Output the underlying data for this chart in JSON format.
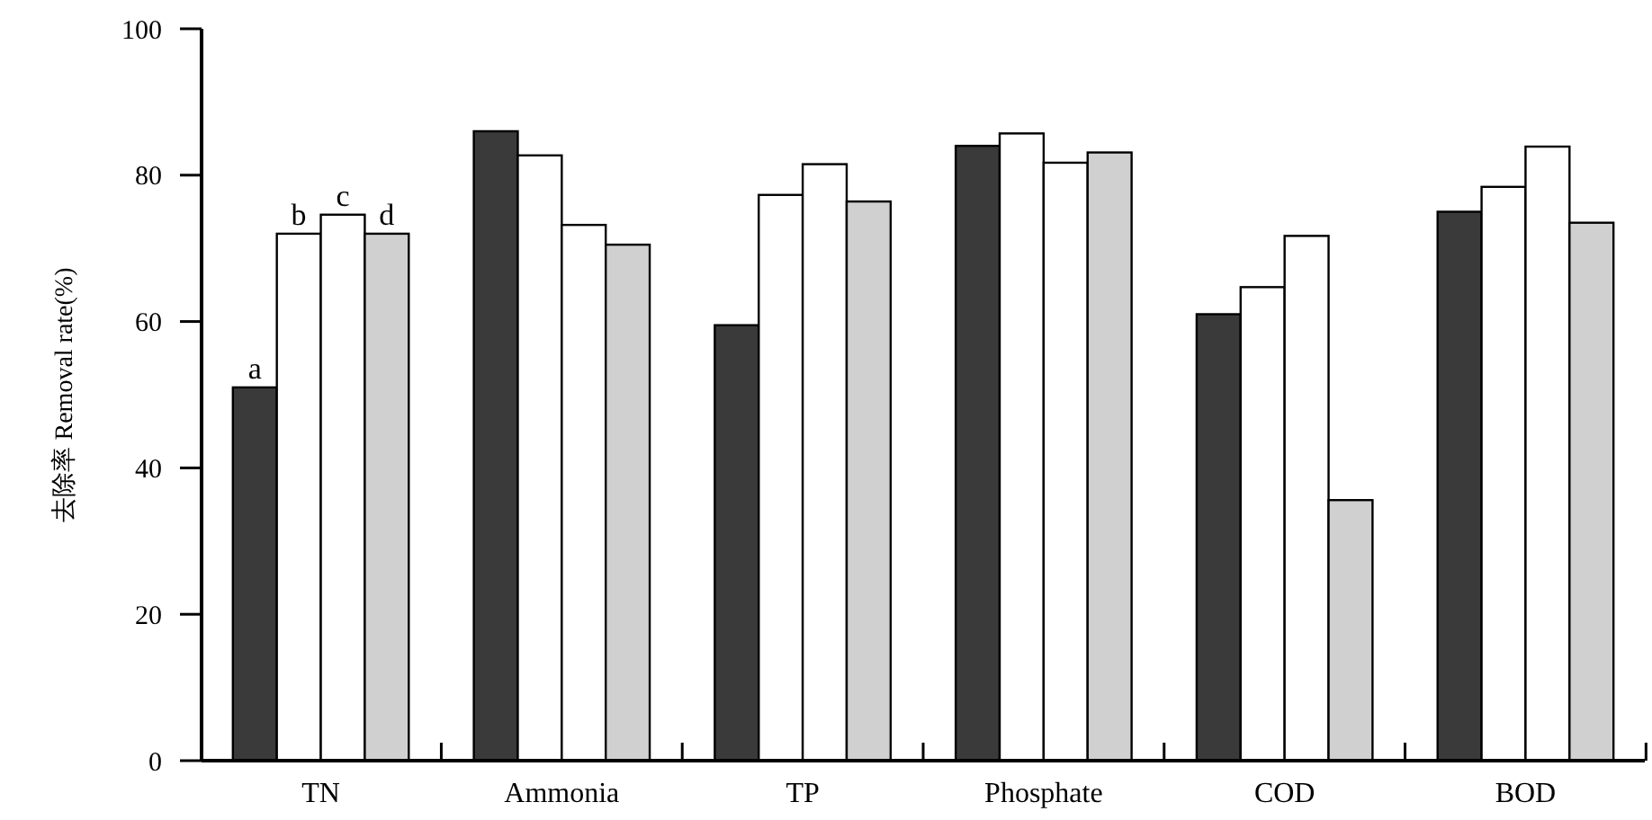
{
  "chart_data": {
    "type": "bar",
    "ylabel": "去除率 Removal rate(%)",
    "categories": [
      "TN",
      "Ammonia",
      "TP",
      "Phosphate",
      "COD",
      "BOD"
    ],
    "series": [
      {
        "name": "a",
        "color": "#3a3a3a",
        "values": [
          51,
          86,
          59.5,
          84,
          61,
          75
        ]
      },
      {
        "name": "b",
        "color": "#ffffff",
        "values": [
          72,
          82.7,
          77.3,
          85.7,
          64.7,
          78.4
        ]
      },
      {
        "name": "c",
        "color": "#ffffff",
        "values": [
          74.6,
          73.2,
          81.5,
          81.7,
          71.7,
          83.9
        ]
      },
      {
        "name": "d",
        "color": "#d0d0d0",
        "values": [
          72,
          70.5,
          76.4,
          83.1,
          35.6,
          73.5
        ]
      }
    ],
    "ylim": [
      0,
      100
    ],
    "yticks": [
      0,
      20,
      40,
      60,
      80,
      100
    ]
  }
}
